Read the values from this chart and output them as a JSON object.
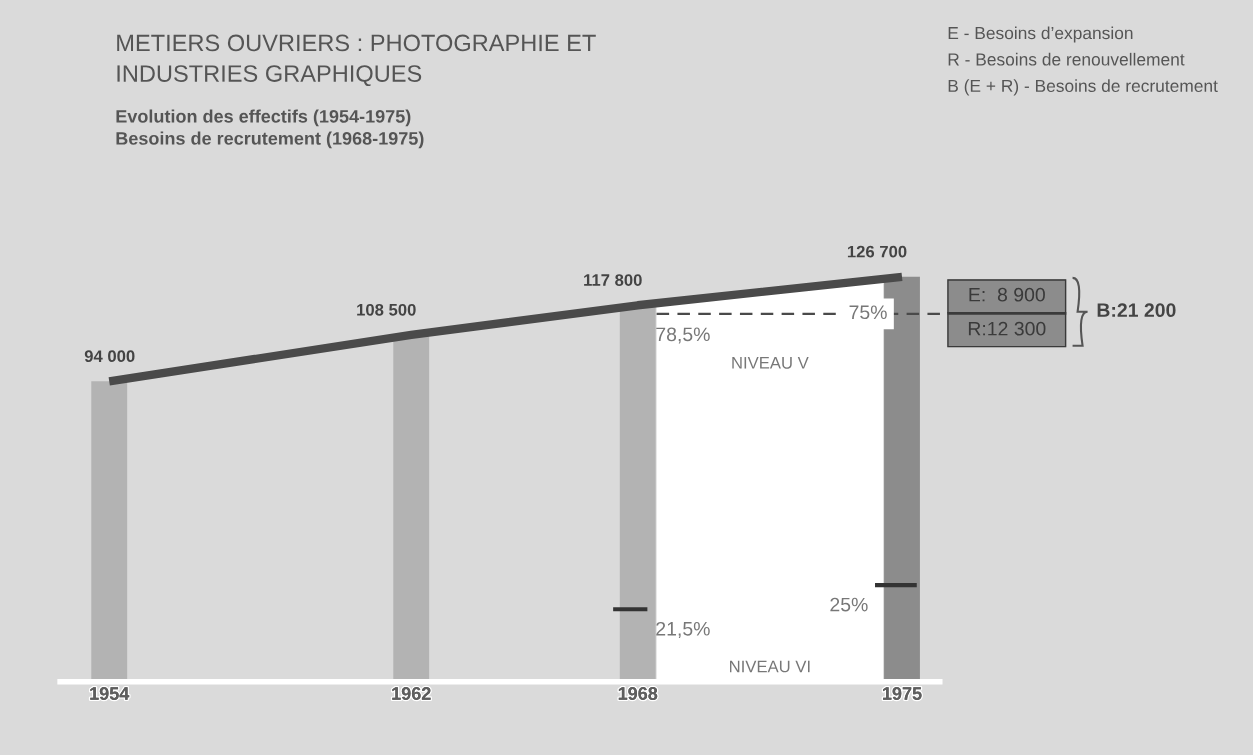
{
  "chart_data": {
    "type": "bar",
    "title": "METIERS OUVRIERS : PHOTOGRAPHIE ET\nINDUSTRIES GRAPHIQUES",
    "subtitle": "Evolution des effectifs (1954-1975)\nBesoins de recrutement (1968-1975)",
    "x": [
      1954,
      1962,
      1968,
      1975
    ],
    "xlim": [
      1952.7,
      1976
    ],
    "xticks": [
      1954,
      1962,
      1968,
      1975
    ],
    "tick_labels": "x",
    "grid": false,
    "legend": false,
    "series": [
      {
        "colors": [
          "#b3b3b3",
          "#b3b3b3",
          "#b3b3b3",
          "#8c8c8c"
        ],
        "values": [
          94000,
          108500,
          117800,
          126700
        ],
        "value_labels": [
          "94 000",
          "108 500",
          "117 800",
          "126 700"
        ]
      },
      {
        "type": "line",
        "color": "#4a4a4a",
        "values": [
          94000,
          108500,
          117800,
          126700
        ]
      }
    ],
    "bands": [
      {
        "axis": "x",
        "from": 1968.5,
        "to": 1974.5,
        "color": "#ffffff"
      }
    ],
    "ref_lines": [
      {
        "axis": "y",
        "value": 115100,
        "line_style": "dashed",
        "color": "#4a4a4a"
      }
    ],
    "annotations": [
      "E - Besoins d’expansion",
      "R - Besoins de renouvellement",
      "B (E + R) - Besoins de recrutement",
      "E:  8 900",
      "R:12 300",
      "B:21 200",
      "78,5%",
      "21,5%",
      "25%",
      "NIVEAU V",
      "NIVEAU VI",
      "75%"
    ]
  }
}
